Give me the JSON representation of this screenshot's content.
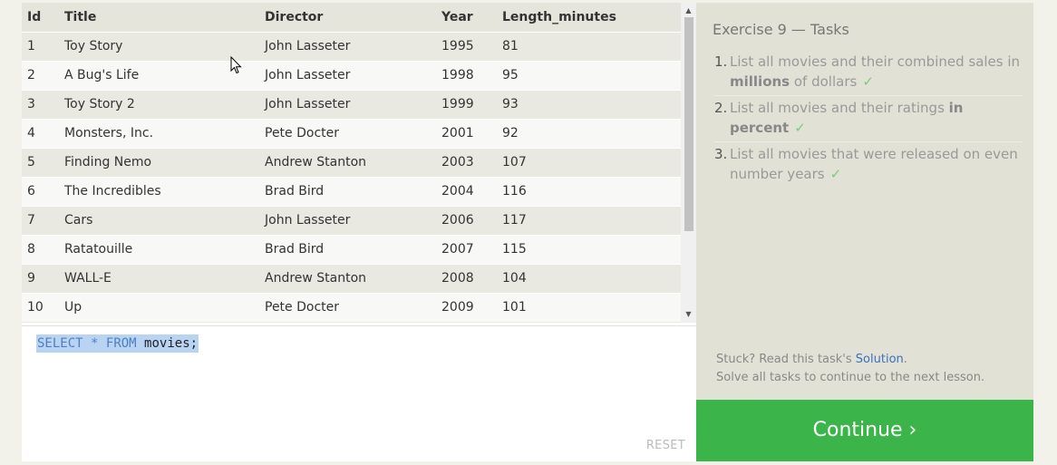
{
  "table": {
    "columns": [
      "Id",
      "Title",
      "Director",
      "Year",
      "Length_minutes"
    ],
    "rows": [
      [
        "1",
        "Toy Story",
        "John Lasseter",
        "1995",
        "81"
      ],
      [
        "2",
        "A Bug's Life",
        "John Lasseter",
        "1998",
        "95"
      ],
      [
        "3",
        "Toy Story 2",
        "John Lasseter",
        "1999",
        "93"
      ],
      [
        "4",
        "Monsters, Inc.",
        "Pete Docter",
        "2001",
        "92"
      ],
      [
        "5",
        "Finding Nemo",
        "Andrew Stanton",
        "2003",
        "107"
      ],
      [
        "6",
        "The Incredibles",
        "Brad Bird",
        "2004",
        "116"
      ],
      [
        "7",
        "Cars",
        "John Lasseter",
        "2006",
        "117"
      ],
      [
        "8",
        "Ratatouille",
        "Brad Bird",
        "2007",
        "115"
      ],
      [
        "9",
        "WALL-E",
        "Andrew Stanton",
        "2008",
        "104"
      ],
      [
        "10",
        "Up",
        "Pete Docter",
        "2009",
        "101"
      ]
    ]
  },
  "editor": {
    "kw_select": "SELECT",
    "star": "*",
    "kw_from": "FROM",
    "table_name": "movies;",
    "reset_label": "RESET"
  },
  "exercise": {
    "title": "Exercise 9 — Tasks",
    "tasks": [
      {
        "num": "1.",
        "pre": "List all movies and their combined sales in ",
        "bold": "millions",
        "post": " of dollars",
        "check": "✓"
      },
      {
        "num": "2.",
        "pre": "List all movies and their ratings ",
        "bold": "in percent",
        "post": "",
        "check": "✓"
      },
      {
        "num": "3.",
        "pre": "List all movies that were released on even number years",
        "bold": "",
        "post": "",
        "check": "✓"
      }
    ]
  },
  "help": {
    "stuck_pre": "Stuck? Read this task's ",
    "solution_link": "Solution",
    "stuck_post": ".",
    "solve_all": "Solve all tasks to continue to the next lesson."
  },
  "continue_label": "Continue ›",
  "icons": {
    "scroll_up": "scroll-up-arrow-icon",
    "scroll_down": "scroll-down-arrow-icon",
    "check": "check-icon",
    "cursor": "mouse-cursor-icon"
  }
}
